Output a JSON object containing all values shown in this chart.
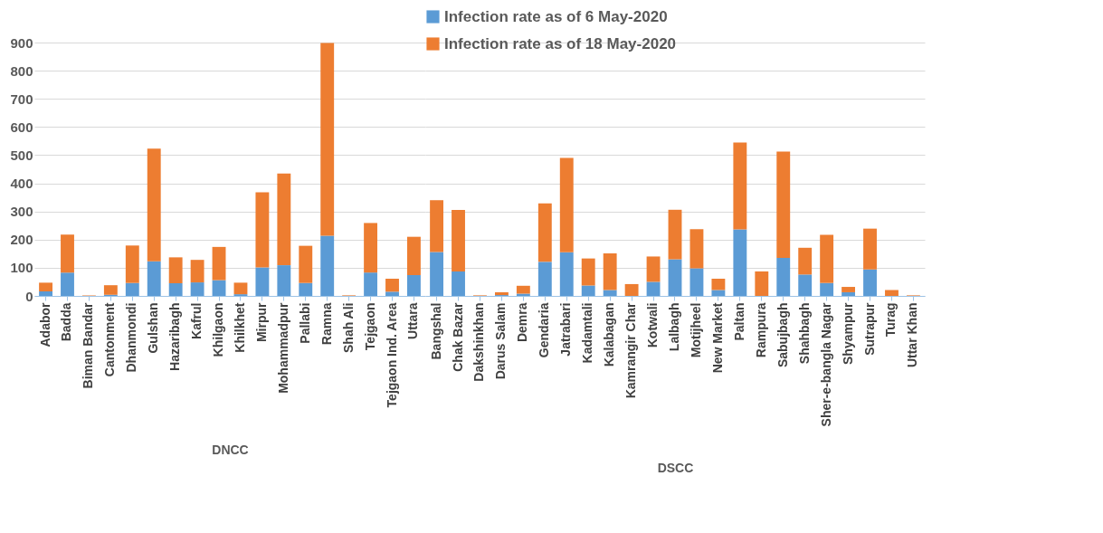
{
  "chart_data": [
    {
      "type": "bar",
      "stacked": true,
      "xlabel": "DNCC",
      "categories": [
        "Adabor",
        "Badda",
        "Biman Bandar",
        "Cantonment",
        "Dhanmondi",
        "Gulshan",
        "Hazaribagh",
        "Kafrul",
        "Khilgaon",
        "Khilkhet",
        "Mirpur",
        "Mohammadpur",
        "Pallabi",
        "Ramna",
        "Shah Ali",
        "Tejgaon",
        "Tejgaon Ind. Area",
        "Uttara"
      ],
      "series": [
        {
          "color": "#5b9bd5",
          "values": [
            16,
            83,
            0,
            4,
            46,
            123,
            45,
            48,
            56,
            6,
            101,
            109,
            46,
            214,
            0,
            83,
            15,
            74
          ]
        },
        {
          "color": "#ed7d31",
          "values": [
            31,
            135,
            2,
            34,
            133,
            400,
            92,
            80,
            118,
            41,
            267,
            326,
            132,
            684,
            2,
            176,
            46,
            136
          ]
        }
      ],
      "ylim": [
        0,
        900
      ],
      "yticks": [
        0,
        100,
        200,
        300,
        400,
        500,
        600,
        700,
        800,
        900
      ],
      "grid": "y"
    },
    {
      "type": "bar",
      "stacked": true,
      "xlabel": "DSCC",
      "legend": "top",
      "tick_labels": "x",
      "categories": [
        "Bangshal",
        "Chak Bazar",
        "Dakshinkhan",
        "Darus Salam",
        "Demra",
        "Gendaria",
        "Jatrabari",
        "Kadamtali",
        "Kalabagan",
        "Kamrangir Char",
        "Kotwali",
        "Lalbagh",
        "Motijheel",
        "New Market",
        "Paltan",
        "Rampura",
        "Sabujbagh",
        "Shahbagh",
        "Sher-e-bangla Nagar",
        "Shyampur",
        "Sutrapur",
        "Turag",
        "Uttar Khan"
      ],
      "series": [
        {
          "name": "Infection rate as of 6 May-2020",
          "color": "#5b9bd5",
          "values": [
            156,
            87,
            0,
            3,
            8,
            121,
            155,
            37,
            21,
            0,
            50,
            130,
            98,
            21,
            236,
            0,
            135,
            76,
            46,
            13,
            94,
            0,
            0
          ]
        },
        {
          "name": "Infection rate as of 18 May-2020",
          "color": "#ed7d31",
          "values": [
            184,
            218,
            2,
            10,
            28,
            208,
            335,
            96,
            130,
            42,
            90,
            176,
            139,
            40,
            309,
            87,
            378,
            95,
            171,
            19,
            145,
            21,
            2
          ]
        }
      ],
      "ylim": [
        0,
        900
      ],
      "yticks": [
        0,
        100,
        200,
        300,
        400,
        500,
        600,
        700,
        800,
        900
      ],
      "grid": "y"
    }
  ]
}
